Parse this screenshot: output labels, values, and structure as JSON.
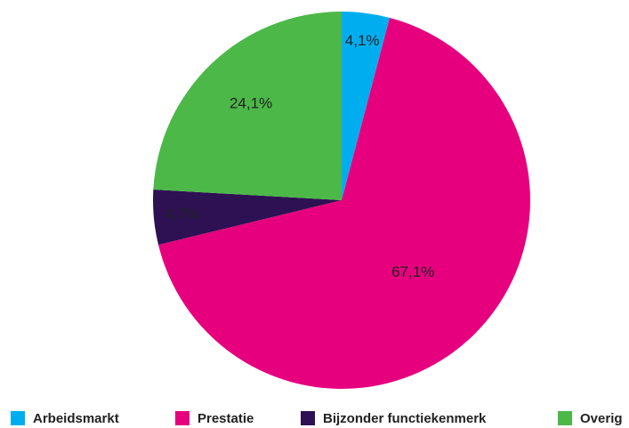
{
  "chart_data": {
    "type": "pie",
    "categories": [
      "Arbeidsmarkt",
      "Prestatie",
      "Bijzonder functiekenmerk",
      "Overig"
    ],
    "values": [
      4.1,
      67.1,
      4.7,
      24.1
    ],
    "value_labels": [
      "4,1%",
      "67,1%",
      "4,7%",
      "24,1%"
    ],
    "colors": [
      "#00aeef",
      "#e6007e",
      "#2d1152",
      "#4cb848"
    ],
    "legend": "bottom"
  }
}
